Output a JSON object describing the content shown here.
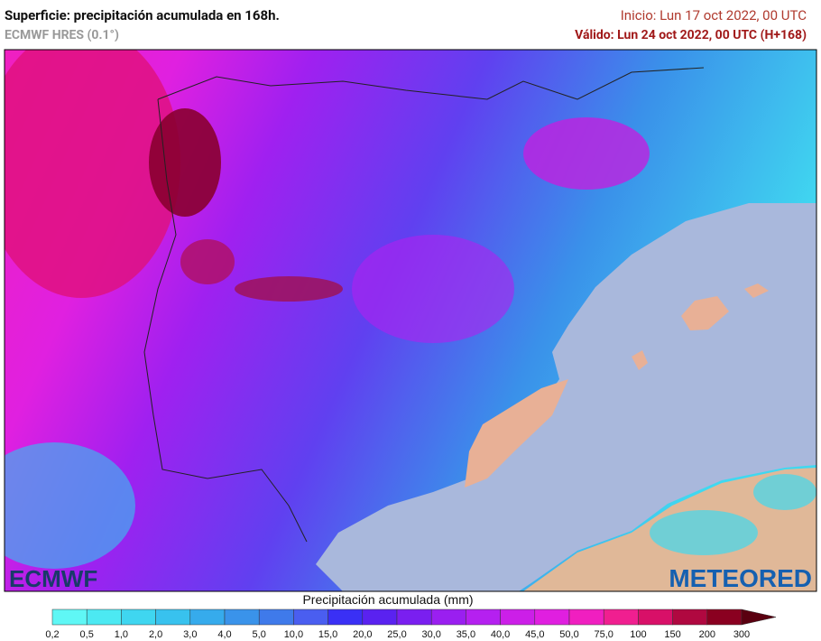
{
  "header": {
    "title": "Superficie: precipitación acumulada en 168h.",
    "model": "ECMWF HRES (0.1°)",
    "inicio": "Inicio: Lun 17 oct 2022, 00 UTC",
    "valido": "Válido: Lun 24 oct 2022, 00 UTC (H+168)"
  },
  "logos": {
    "left": "ECMWF",
    "right": "METEORED"
  },
  "legend": {
    "title": "Precipitación acumulada (mm)",
    "ticks": [
      "0,2",
      "0,5",
      "1,0",
      "2,0",
      "3,0",
      "4,0",
      "5,0",
      "10,0",
      "15,0",
      "20,0",
      "25,0",
      "30,0",
      "35,0",
      "40,0",
      "45,0",
      "50,0",
      "75,0",
      "100",
      "150",
      "200",
      "300"
    ],
    "colors": [
      "#5ff7f5",
      "#4ce9f2",
      "#3fd6f0",
      "#38c2ee",
      "#36abec",
      "#3a93ea",
      "#3f7aea",
      "#4a5ef0",
      "#3a30f5",
      "#5a22f0",
      "#7a1ff0",
      "#9a1ff0",
      "#b520f0",
      "#cc1fe8",
      "#e01fe0",
      "#f01fc0",
      "#f01f90",
      "#d81068",
      "#b00840",
      "#8a0020",
      "#5a0010"
    ]
  }
}
